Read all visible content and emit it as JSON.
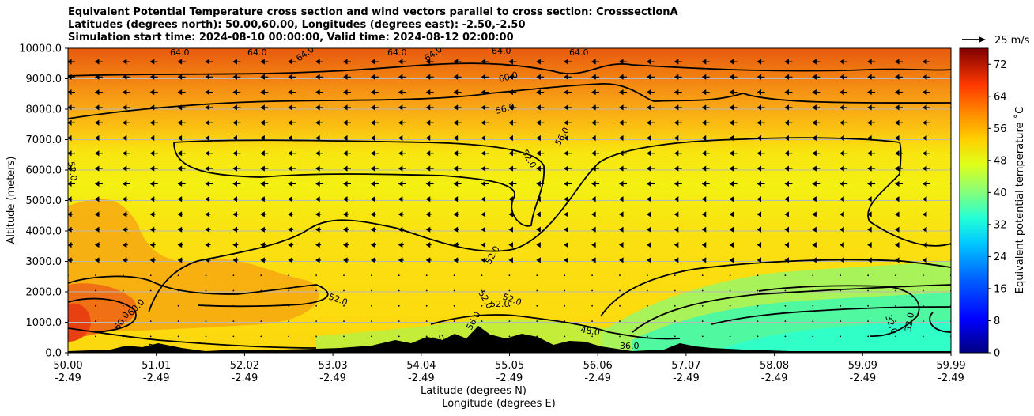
{
  "titles": [
    "Equivalent Potential Temperature cross section and wind vectors parallel to cross section: CrosssectionA",
    "Latitudes (degrees north): 50.00,60.00, Longitudes (degrees east): -2.50,-2.50",
    "Simulation start time: 2024-08-10 00:00:00, Valid time: 2024-08-12 02:00:00"
  ],
  "chart_data": {
    "type": "heatmap",
    "ylabel": "Altitude (meters)",
    "xlabel_line1": "Latitude (degrees N)",
    "xlabel_line2": "Longitude (degrees E)",
    "ylim": [
      0,
      10000
    ],
    "yticks": [
      "0.0",
      "1000.0",
      "2000.0",
      "3000.0",
      "4000.0",
      "5000.0",
      "6000.0",
      "7000.0",
      "8000.0",
      "9000.0",
      "10000.0"
    ],
    "xticks_lat": [
      "50.00",
      "51.01",
      "52.02",
      "53.03",
      "54.04",
      "55.05",
      "56.06",
      "57.07",
      "58.08",
      "59.09",
      "59.99"
    ],
    "xticks_lon": [
      "-2.49",
      "-2.49",
      "-2.49",
      "-2.49",
      "-2.49",
      "-2.49",
      "-2.49",
      "-2.49",
      "-2.49",
      "-2.49",
      "-2.49"
    ],
    "grid": "horizontal",
    "wind_key_label": "25 m/s",
    "colorbar": {
      "label": "Equivalent potential temperature ˚C",
      "range": [
        0,
        76
      ],
      "ticks": [
        "0",
        "8",
        "16",
        "24",
        "32",
        "40",
        "48",
        "56",
        "64",
        "72"
      ]
    },
    "contour_labels": [
      "64.0",
      "64.0",
      "64.0",
      "64.0",
      "64.0",
      "64.0",
      "64.0",
      "60.0",
      "56.0",
      "52.0",
      "56.0",
      "52.0",
      "52.0",
      "52.0",
      "52.0",
      "52.0",
      "52.0",
      "52.0",
      "56.0",
      "60.0",
      "60.0",
      "52.0",
      "48.0",
      "36.0",
      "32.0",
      "32.0",
      "52.0"
    ]
  }
}
